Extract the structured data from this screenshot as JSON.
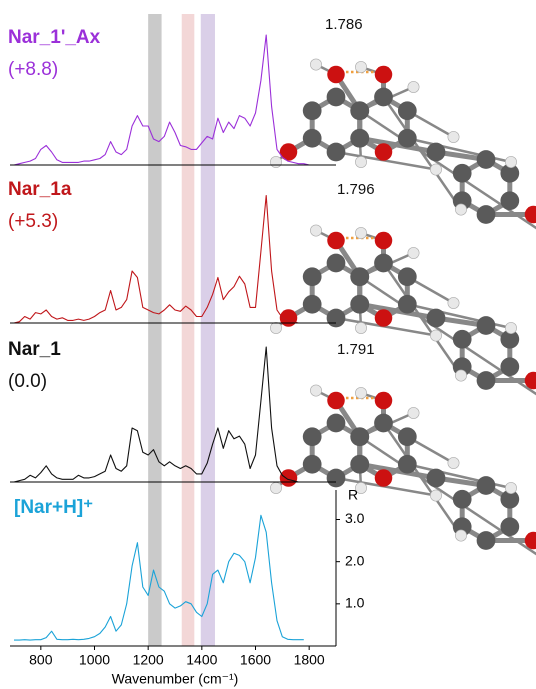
{
  "chart_data": [
    {
      "type": "line",
      "title": "Nar_1'_Ax",
      "subtitle": "(+8.8)",
      "annotation": "1.786",
      "color": "#9b30d9",
      "xlim": [
        700,
        1900
      ],
      "ylim": [
        0,
        1
      ],
      "x": [
        700,
        720,
        740,
        760,
        780,
        800,
        820,
        840,
        860,
        880,
        900,
        920,
        940,
        960,
        980,
        1000,
        1020,
        1040,
        1060,
        1080,
        1100,
        1120,
        1140,
        1160,
        1180,
        1200,
        1220,
        1240,
        1260,
        1280,
        1300,
        1320,
        1340,
        1360,
        1380,
        1400,
        1420,
        1440,
        1460,
        1480,
        1500,
        1520,
        1540,
        1560,
        1580,
        1600,
        1620,
        1640,
        1660,
        1680,
        1700,
        1720,
        1740,
        1760,
        1780,
        1800,
        1820,
        1840,
        1860,
        1880
      ],
      "values": [
        0,
        0.01,
        0.02,
        0.03,
        0.05,
        0.12,
        0.15,
        0.1,
        0.04,
        0.02,
        0.02,
        0.02,
        0.02,
        0.03,
        0.03,
        0.04,
        0.05,
        0.08,
        0.18,
        0.1,
        0.08,
        0.12,
        0.3,
        0.38,
        0.3,
        0.3,
        0.2,
        0.18,
        0.22,
        0.33,
        0.25,
        0.15,
        0.14,
        0.12,
        0.12,
        0.17,
        0.22,
        0.2,
        0.36,
        0.25,
        0.33,
        0.28,
        0.38,
        0.36,
        0.3,
        0.4,
        0.65,
        1.0,
        0.45,
        0.12,
        0.06,
        0.03,
        0.02,
        0.01,
        0.01,
        0,
        0,
        0,
        0,
        0
      ]
    },
    {
      "type": "line",
      "title": "Nar_1a",
      "subtitle": "(+5.3)",
      "annotation": "1.796",
      "color": "#c0171b",
      "xlim": [
        700,
        1900
      ],
      "ylim": [
        0,
        1
      ],
      "x": [
        700,
        720,
        740,
        760,
        780,
        800,
        820,
        840,
        860,
        880,
        900,
        920,
        940,
        960,
        980,
        1000,
        1020,
        1040,
        1060,
        1080,
        1100,
        1120,
        1140,
        1160,
        1180,
        1200,
        1220,
        1240,
        1260,
        1280,
        1300,
        1320,
        1340,
        1360,
        1380,
        1400,
        1420,
        1440,
        1460,
        1480,
        1500,
        1520,
        1540,
        1560,
        1580,
        1600,
        1620,
        1640,
        1660,
        1680,
        1700,
        1720,
        1740,
        1760,
        1780,
        1800,
        1820,
        1840,
        1860,
        1880
      ],
      "values": [
        0,
        0.01,
        0.05,
        0.03,
        0.08,
        0.07,
        0.1,
        0.05,
        0.03,
        0.04,
        0.02,
        0.02,
        0.03,
        0.02,
        0.03,
        0.05,
        0.08,
        0.1,
        0.25,
        0.1,
        0.12,
        0.18,
        0.4,
        0.35,
        0.12,
        0.1,
        0.08,
        0.07,
        0.1,
        0.14,
        0.1,
        0.09,
        0.13,
        0.1,
        0.05,
        0.05,
        0.12,
        0.22,
        0.35,
        0.18,
        0.24,
        0.28,
        0.36,
        0.3,
        0.12,
        0.12,
        0.55,
        0.98,
        0.4,
        0.1,
        0.04,
        0.02,
        0.01,
        0,
        0,
        0,
        0,
        0,
        0,
        0
      ]
    },
    {
      "type": "line",
      "title": "Nar_1",
      "subtitle": "(0.0)",
      "annotation": "1.791",
      "color": "#111111",
      "xlim": [
        700,
        1900
      ],
      "ylim": [
        0,
        1
      ],
      "x": [
        700,
        720,
        740,
        760,
        780,
        800,
        820,
        840,
        860,
        880,
        900,
        920,
        940,
        960,
        980,
        1000,
        1020,
        1040,
        1060,
        1080,
        1100,
        1120,
        1140,
        1160,
        1180,
        1200,
        1220,
        1240,
        1260,
        1280,
        1300,
        1320,
        1340,
        1360,
        1380,
        1400,
        1420,
        1440,
        1460,
        1480,
        1500,
        1520,
        1540,
        1560,
        1580,
        1600,
        1620,
        1640,
        1660,
        1680,
        1700,
        1720,
        1740,
        1760,
        1780,
        1800,
        1820,
        1840,
        1860,
        1880
      ],
      "values": [
        0,
        0.01,
        0.02,
        0.05,
        0.03,
        0.07,
        0.12,
        0.06,
        0.03,
        0.02,
        0.02,
        0.02,
        0.05,
        0.03,
        0.03,
        0.04,
        0.06,
        0.08,
        0.2,
        0.1,
        0.08,
        0.12,
        0.4,
        0.38,
        0.22,
        0.2,
        0.24,
        0.15,
        0.12,
        0.15,
        0.12,
        0.1,
        0.12,
        0.1,
        0.06,
        0.06,
        0.14,
        0.28,
        0.4,
        0.25,
        0.38,
        0.32,
        0.34,
        0.28,
        0.1,
        0.2,
        0.6,
        1.0,
        0.4,
        0.12,
        0.05,
        0.02,
        0.01,
        0,
        0,
        0,
        0,
        0,
        0,
        0
      ]
    },
    {
      "type": "line",
      "title": "[Nar+H]⁺",
      "color": "#1ba3d8",
      "x_label": "Wavenumber (cm⁻¹)",
      "y_label": "R",
      "xlim": [
        700,
        1900
      ],
      "xticks": [
        800,
        1000,
        1200,
        1400,
        1600,
        1800
      ],
      "ylim": [
        0,
        3.7
      ],
      "yticks": [
        {
          "value": 1,
          "label": "1.0"
        },
        {
          "value": 2,
          "label": "2.0"
        },
        {
          "value": 3,
          "label": "3.0"
        }
      ],
      "bands": [
        {
          "range": [
            1200,
            1250
          ],
          "color": "#b8b8b8"
        },
        {
          "range": [
            1325,
            1372
          ],
          "color": "#efc9c9"
        },
        {
          "range": [
            1396,
            1449
          ],
          "color": "#cdbfe0"
        }
      ],
      "x": [
        700,
        720,
        740,
        760,
        780,
        800,
        820,
        840,
        860,
        880,
        900,
        920,
        940,
        960,
        980,
        1000,
        1020,
        1040,
        1060,
        1080,
        1100,
        1120,
        1140,
        1160,
        1180,
        1200,
        1220,
        1240,
        1260,
        1280,
        1300,
        1320,
        1340,
        1360,
        1380,
        1400,
        1420,
        1440,
        1460,
        1480,
        1500,
        1520,
        1540,
        1560,
        1580,
        1600,
        1620,
        1640,
        1660,
        1680,
        1700,
        1720,
        1740,
        1760,
        1780
      ],
      "values": [
        0.14,
        0.14,
        0.15,
        0.14,
        0.15,
        0.15,
        0.2,
        0.35,
        0.16,
        0.15,
        0.15,
        0.16,
        0.15,
        0.16,
        0.18,
        0.22,
        0.3,
        0.45,
        0.7,
        0.35,
        0.5,
        1.0,
        1.9,
        2.45,
        1.4,
        1.2,
        1.8,
        1.4,
        1.3,
        1.0,
        0.9,
        0.95,
        1.05,
        1.0,
        0.8,
        0.7,
        1.0,
        1.7,
        1.8,
        1.5,
        2.0,
        2.2,
        2.15,
        2.0,
        1.5,
        2.1,
        3.1,
        2.7,
        1.5,
        0.6,
        0.22,
        0.16,
        0.15,
        0.15,
        0.15
      ]
    }
  ]
}
